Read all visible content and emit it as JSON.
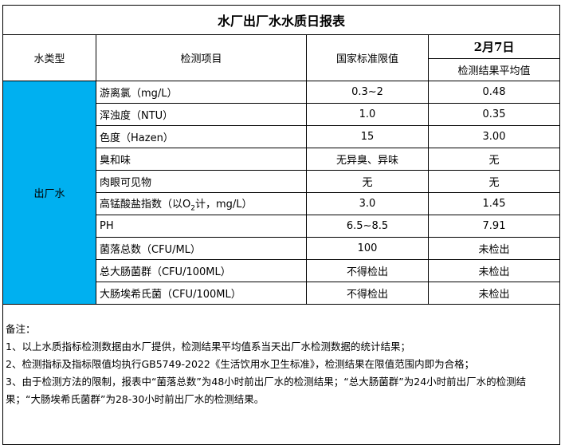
{
  "title": "水厂出厂水水质日报表",
  "headers": {
    "type": "水类型",
    "item": "检测项目",
    "limit": "国家标准限值",
    "date": "2月7日",
    "result": "检测结果平均值"
  },
  "water_type": "出厂水",
  "rows": [
    {
      "item": "游离氯（mg/L）",
      "limit": "0.3~2",
      "result": "0.48"
    },
    {
      "item": "浑浊度（NTU）",
      "limit": "1.0",
      "result": "0.35"
    },
    {
      "item": "色度（Hazen）",
      "limit": "15",
      "result": "3.00"
    },
    {
      "item": "臭和味",
      "limit": "无异臭、异味",
      "result": "无"
    },
    {
      "item": "肉眼可见物",
      "limit": "无",
      "result": "无"
    },
    {
      "item_pre": "高锰酸盐指数（以O",
      "item_sub": "2",
      "item_post": "计，mg/L）",
      "limit": "3.0",
      "result": "1.45"
    },
    {
      "item": "PH",
      "limit": "6.5~8.5",
      "result": "7.91"
    },
    {
      "item": "菌落总数（CFU/ML）",
      "limit": "100",
      "result": "未检出"
    },
    {
      "item": "总大肠菌群（CFU/100ML）",
      "limit": "不得检出",
      "result": "未检出"
    },
    {
      "item": "大肠埃希氏菌（CFU/100ML）",
      "limit": "不得检出",
      "result": "未检出"
    }
  ],
  "notes": [
    "备注：",
    "1、以上水质指标检测数据由水厂提供，检测结果平均值系当天出厂水检测数据的统计结果；",
    "2、检测指标及指标限值均执行GB5749-2022《生活饮用水卫生标准》，检测结果在限值范围内即为合格；",
    "3、由于检测方法的限制，报表中“菌落总数”为48小时前出厂水的检测结果；“总大肠菌群”为24小时前出厂水的检测结果；“大肠埃希氏菌群”为28-30小时前出厂水的检测结果。"
  ],
  "colors": {
    "water_type_bg": "#00B0F0"
  }
}
